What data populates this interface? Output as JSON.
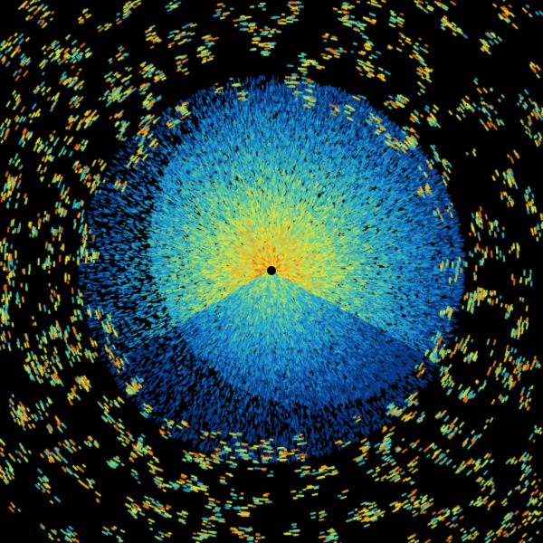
{
  "image": {
    "background": "#000000",
    "palette": [
      "#0b3f8a",
      "#1565b8",
      "#1f8fd0",
      "#2bb0c8",
      "#5cc9a0",
      "#a6dc6a",
      "#e0e040",
      "#f0b020",
      "#e07010"
    ]
  }
}
